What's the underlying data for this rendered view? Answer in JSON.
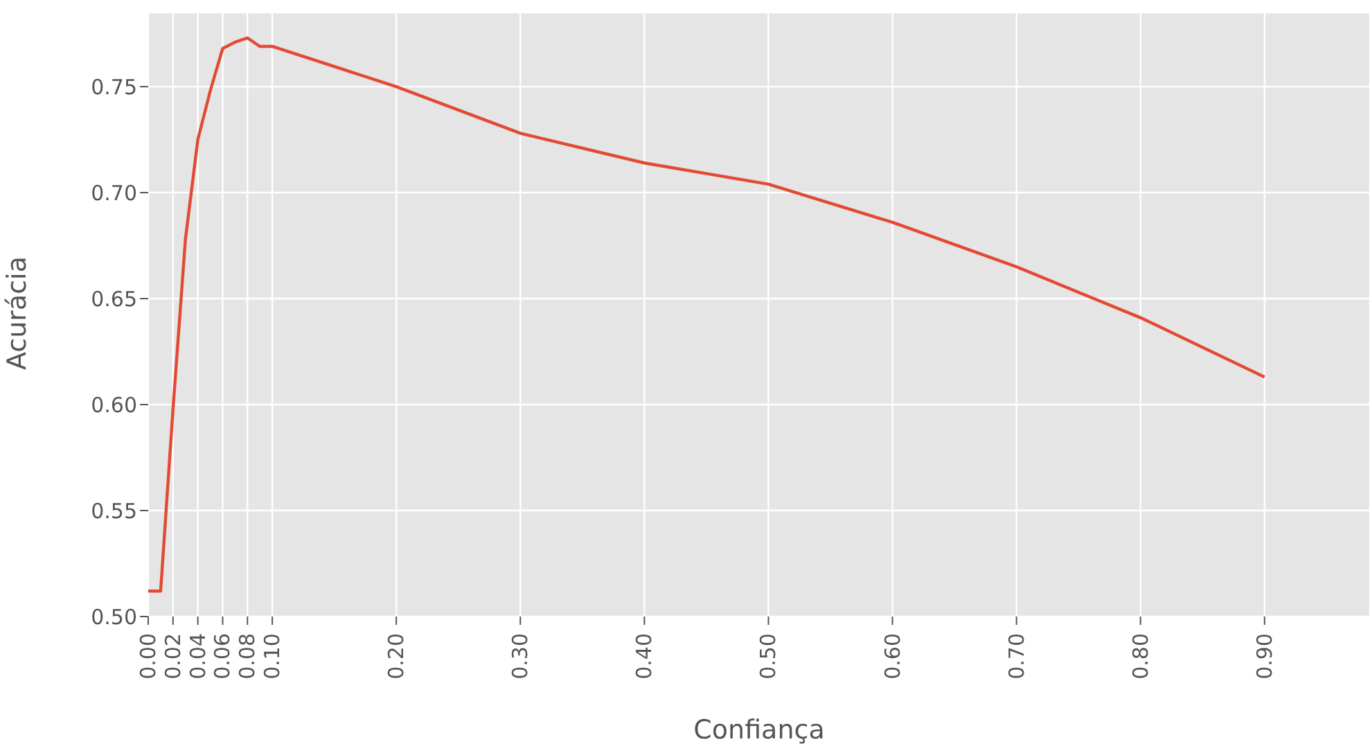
{
  "chart_data": {
    "type": "line",
    "xlabel": "Confiança",
    "ylabel": "Acurácia",
    "x": [
      0,
      0.01,
      0.02,
      0.03,
      0.04,
      0.05,
      0.06,
      0.07,
      0.08,
      0.09,
      0.1,
      0.2,
      0.3,
      0.4,
      0.5,
      0.6,
      0.7,
      0.8,
      0.9
    ],
    "series": [
      {
        "color": "#e24a33",
        "values": [
          0.512,
          0.512,
          0.598,
          0.678,
          0.725,
          0.748,
          0.768,
          0.771,
          0.773,
          0.769,
          0.769,
          0.75,
          0.728,
          0.714,
          0.704,
          0.686,
          0.665,
          0.641,
          0.613
        ]
      }
    ],
    "xlim": [
      0,
      0.985
    ],
    "ylim": [
      0.5,
      0.785
    ],
    "xticks": [
      {
        "value": 0,
        "label": "0.00"
      },
      {
        "value": 0.02,
        "label": "0.02"
      },
      {
        "value": 0.04,
        "label": "0.04"
      },
      {
        "value": 0.06,
        "label": "0.06"
      },
      {
        "value": 0.08,
        "label": "0.08"
      },
      {
        "value": 0.1,
        "label": "0.10"
      },
      {
        "value": 0.2,
        "label": "0.20"
      },
      {
        "value": 0.3,
        "label": "0.30"
      },
      {
        "value": 0.4,
        "label": "0.40"
      },
      {
        "value": 0.5,
        "label": "0.50"
      },
      {
        "value": 0.6,
        "label": "0.60"
      },
      {
        "value": 0.7,
        "label": "0.70"
      },
      {
        "value": 0.8,
        "label": "0.80"
      },
      {
        "value": 0.9,
        "label": "0.90"
      }
    ],
    "yticks": [
      {
        "value": 0.5,
        "label": "0.50"
      },
      {
        "value": 0.55,
        "label": "0.55"
      },
      {
        "value": 0.6,
        "label": "0.60"
      },
      {
        "value": 0.65,
        "label": "0.65"
      },
      {
        "value": 0.7,
        "label": "0.70"
      },
      {
        "value": 0.75,
        "label": "0.75"
      }
    ],
    "grid": true
  }
}
